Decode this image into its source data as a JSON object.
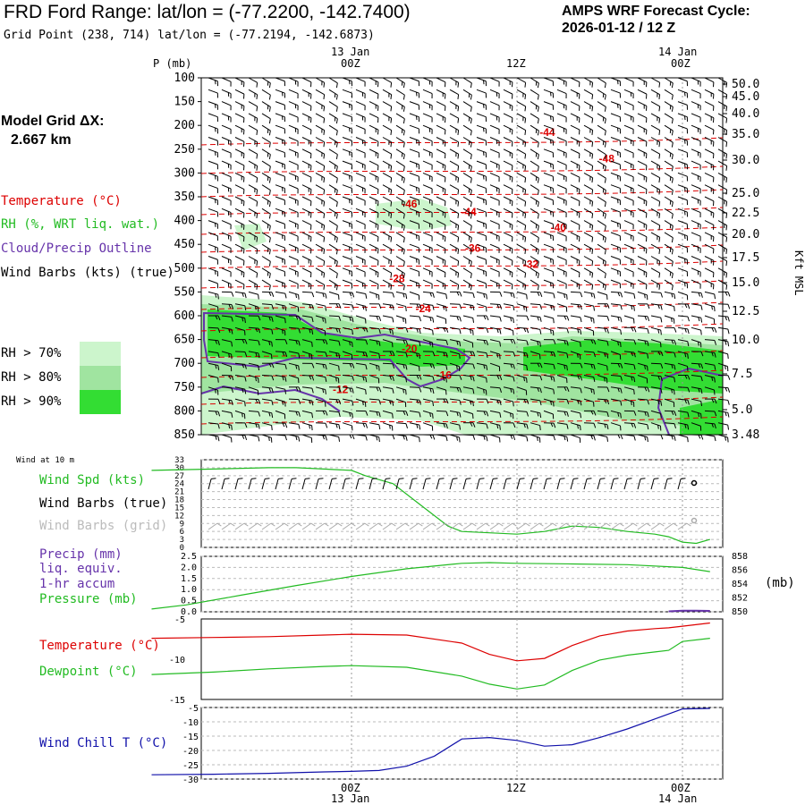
{
  "header": {
    "title": "FRD Ford Range:  lat/lon = (-77.2200, -142.7400)",
    "grid_point": "Grid Point (238, 714) lat/lon = (-77.2194, -142.6873)",
    "cycle_line1": "AMPS WRF Forecast Cycle:",
    "cycle_line2": "2026-01-12 / 12  Z"
  },
  "top_time_axis": {
    "labels": [
      {
        "date": "13 Jan",
        "hour": "00Z"
      },
      {
        "date": "",
        "hour": "12Z"
      },
      {
        "date": "14 Jan",
        "hour": "00Z"
      }
    ]
  },
  "bottom_time_axis": {
    "labels": [
      {
        "hour": "00Z",
        "date": "13 Jan"
      },
      {
        "hour": "12Z",
        "date": ""
      },
      {
        "hour": "00Z",
        "date": "14 Jan"
      }
    ]
  },
  "model_grid": {
    "label": "Model Grid ΔX:",
    "value": "2.667 km"
  },
  "legend": {
    "temperature": "Temperature (°C)",
    "rh": "RH (%, WRT liq. wat.)",
    "cloud": "Cloud/Precip Outline",
    "wind_barbs": "Wind Barbs (kts) (true)",
    "rh70": "RH > 70%",
    "rh80": "RH > 80%",
    "rh90": "RH > 90%"
  },
  "colors": {
    "temperature": "#dd0000",
    "rh_green": "#22bb22",
    "rh70": "#ccf5cc",
    "rh80": "#a0e4a0",
    "rh90": "#33dd33",
    "cloud": "#6633aa",
    "wind_spd": "#22bb22",
    "precip": "#6633aa",
    "dewpoint": "#22bb22",
    "windchill": "#1111aa",
    "grid_barb": "#aaaaaa"
  },
  "panels": {
    "wind10": {
      "title": "Wind at 10 m",
      "spd_label": "Wind Spd (kts)",
      "barbs_true": "Wind Barbs (true)",
      "barbs_grid": "Wind Barbs (grid)"
    },
    "precip": {
      "label1": "Precip (mm)",
      "label2": "liq. equiv.",
      "label3": "1-hr accum",
      "label4": "Pressure (mb)",
      "right_unit": "(mb)"
    },
    "temp": {
      "label1": "Temperature (°C)",
      "label2": "Dewpoint (°C)"
    },
    "windchill": {
      "label": "Wind Chill T (°C)"
    }
  },
  "right_axis_label": "Kft MSL",
  "chart_data": [
    {
      "type": "heatmap",
      "title": "Vertical profile time-height section",
      "ylabel": "P (mb)",
      "pressure_ticks": [
        "100",
        "150",
        "200",
        "250",
        "300",
        "350",
        "400",
        "450",
        "500",
        "550",
        "600",
        "650",
        "700",
        "750",
        "800",
        "850"
      ],
      "kft_ticks": [
        "50.0",
        "45.0",
        "40.0",
        "35.0",
        "30.0",
        "25.0",
        "22.5",
        "20.0",
        "17.5",
        "15.0",
        "12.5",
        "10.0",
        "7.5",
        "5.0",
        "3.48"
      ],
      "temperature_contour_labels": [
        {
          "label": "-44",
          "p": 215,
          "h": 14.2
        },
        {
          "label": "-48",
          "p": 270,
          "h": 18.5
        },
        {
          "label": "-46",
          "p": 365,
          "h": 4.2
        },
        {
          "label": "-44",
          "p": 382,
          "h": 8.5
        },
        {
          "label": "-40",
          "p": 415,
          "h": 15.0
        },
        {
          "label": "-36",
          "p": 458,
          "h": 8.8
        },
        {
          "label": "-32",
          "p": 492,
          "h": 13.0
        },
        {
          "label": "-28",
          "p": 522,
          "h": 3.3
        },
        {
          "label": "-24",
          "p": 585,
          "h": 5.2
        },
        {
          "label": "-20",
          "p": 670,
          "h": 4.2
        },
        {
          "label": "-16",
          "p": 725,
          "h": 6.7
        },
        {
          "label": "-12",
          "p": 755,
          "h": -0.8
        }
      ]
    },
    {
      "type": "line",
      "title": "Wind Spd (kts)",
      "ylim": [
        0,
        33
      ],
      "yticks": [
        "33",
        "30",
        "27",
        "24",
        "21",
        "18",
        "15",
        "12",
        "9",
        "6",
        "3",
        "0"
      ],
      "x_hours": [
        -14.5,
        -10,
        -6,
        -4,
        -2,
        0,
        1,
        3,
        5,
        7,
        8,
        10,
        12,
        14,
        16,
        18,
        20,
        22,
        23,
        24,
        25,
        26
      ],
      "values": [
        29,
        29.5,
        30,
        30,
        29.5,
        29,
        27,
        24,
        16,
        8,
        6,
        5.5,
        5,
        6,
        8,
        7.5,
        6,
        5,
        4,
        2,
        1.5,
        3
      ]
    },
    {
      "type": "line",
      "title": "Pressure (mb)",
      "ylim": [
        850,
        858
      ],
      "left_ticks": [
        "2.5",
        "2.0",
        "1.5",
        "1.0",
        "0.5",
        "0.0"
      ],
      "right_ticks": [
        "858",
        "856",
        "854",
        "852",
        "850"
      ],
      "x_hours": [
        -14.5,
        -12,
        -8,
        -4,
        0,
        4,
        8,
        10,
        12,
        16,
        20,
        24,
        26
      ],
      "values": [
        850.4,
        851.0,
        852.4,
        853.8,
        855.1,
        856.2,
        857.0,
        857.1,
        857.0,
        856.9,
        856.8,
        856.4,
        855.8
      ],
      "precip_x_hours": [
        23,
        24,
        25,
        26
      ],
      "precip_values": [
        0.02,
        0.05,
        0.05,
        0.04
      ]
    },
    {
      "type": "line",
      "title": "Temperature / Dewpoint (°C)",
      "ylim": [
        -15,
        -5
      ],
      "yticks": [
        "-5",
        "-10",
        "-15"
      ],
      "series": [
        {
          "name": "Temperature",
          "x_hours": [
            -14.5,
            -10,
            -6,
            -2,
            0,
            4,
            8,
            10,
            12,
            14,
            16,
            18,
            20,
            22,
            23,
            24,
            26
          ],
          "values": [
            -7.4,
            -7.3,
            -7.2,
            -7.0,
            -6.9,
            -7.0,
            -8.0,
            -9.4,
            -10.2,
            -9.9,
            -8.3,
            -7.1,
            -6.5,
            -6.2,
            -6.1,
            -5.9,
            -5.5
          ]
        },
        {
          "name": "Dewpoint",
          "x_hours": [
            -14.5,
            -10,
            -6,
            -2,
            0,
            4,
            8,
            10,
            12,
            14,
            16,
            18,
            20,
            22,
            23,
            24,
            26
          ],
          "values": [
            -11.9,
            -11.6,
            -11.2,
            -10.9,
            -10.8,
            -11.0,
            -12.1,
            -13.1,
            -13.7,
            -13.2,
            -11.4,
            -10.1,
            -9.5,
            -9.1,
            -8.9,
            -7.8,
            -7.4
          ]
        }
      ]
    },
    {
      "type": "line",
      "title": "Wind Chill T (°C)",
      "ylim": [
        -30,
        -5
      ],
      "yticks": [
        "-5",
        "-10",
        "-15",
        "-20",
        "-25",
        "-30"
      ],
      "x_hours": [
        -14.5,
        -10,
        -6,
        -2,
        0,
        2,
        4,
        6,
        8,
        10,
        12,
        14,
        16,
        18,
        20,
        22,
        24,
        26
      ],
      "values": [
        -28.5,
        -28.3,
        -28.0,
        -27.5,
        -27.3,
        -27.0,
        -25.5,
        -22.0,
        -16.0,
        -15.5,
        -16.5,
        -18.5,
        -18.0,
        -15.5,
        -12.5,
        -9.0,
        -5.5,
        -5.3
      ]
    }
  ]
}
